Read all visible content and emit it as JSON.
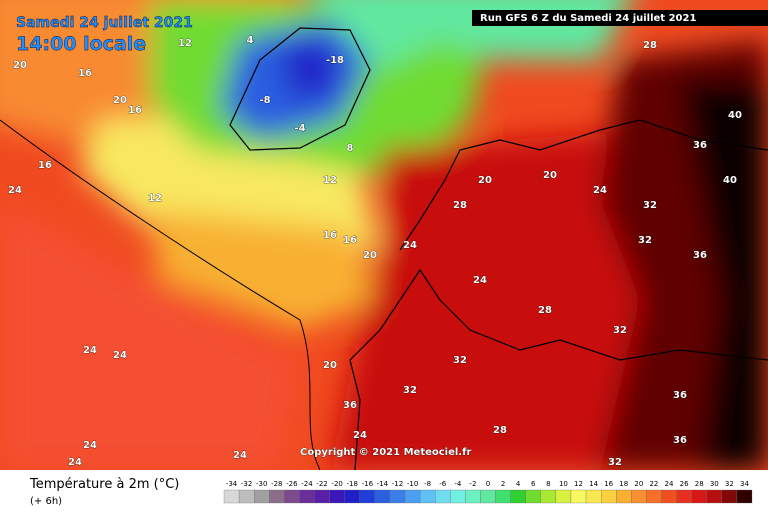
{
  "header": {
    "date": "Samedi 24 juillet 2021",
    "time": "14:00 locale",
    "run": "Run GFS 6 Z du Samedi 24 juillet 2021"
  },
  "copyright": "Copyright © 2021 Meteociel.fr",
  "footer": {
    "title": "Température à 2m (°C)",
    "subtitle": "(+ 6h)"
  },
  "scale": {
    "ticks": [
      -34,
      -32,
      -30,
      -28,
      -26,
      -24,
      -22,
      -20,
      -18,
      -16,
      -14,
      -12,
      -10,
      -8,
      -6,
      -4,
      -2,
      0,
      2,
      4,
      6,
      8,
      10,
      12,
      14,
      16,
      18,
      20,
      22,
      24,
      26,
      28,
      30,
      32,
      34
    ],
    "colors": [
      "#d8d8d8",
      "#bdbdbd",
      "#a0a0a0",
      "#8a6e8a",
      "#7d4a8f",
      "#6a2d9a",
      "#5a1fa8",
      "#3b16b8",
      "#2020c8",
      "#1f3fd6",
      "#2a5fe0",
      "#3a7fe8",
      "#4a9ff0",
      "#5fc0f5",
      "#6fdcf0",
      "#70f0e0",
      "#6cf0c0",
      "#60e8a0",
      "#40e070",
      "#30d030",
      "#70dc30",
      "#a8e830",
      "#d8f040",
      "#f8f860",
      "#f8e850",
      "#f8d040",
      "#f8b030",
      "#f89030",
      "#f87028",
      "#f05020",
      "#e83020",
      "#d81818",
      "#b80e0e",
      "#800808",
      "#300000"
    ]
  },
  "map_labels": [
    20,
    16,
    20,
    16,
    16,
    24,
    12,
    12,
    4,
    -8,
    -18,
    -4,
    8,
    12,
    16,
    16,
    20,
    24,
    28,
    20,
    20,
    24,
    32,
    32,
    40,
    40,
    36,
    32,
    28,
    24,
    32,
    32,
    36,
    24,
    28,
    32,
    36,
    24,
    24,
    24,
    24,
    24,
    20,
    28,
    36,
    36
  ]
}
